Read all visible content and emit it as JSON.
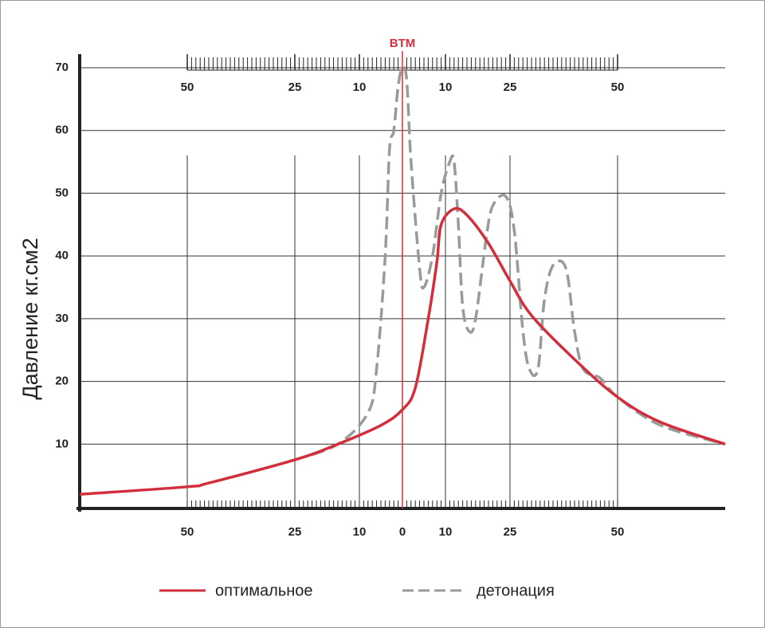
{
  "chart_data": {
    "type": "line",
    "ylabel": "Давление кг.см2",
    "annotation": {
      "x": 0,
      "text": "BTM",
      "color": "#d22f3c"
    },
    "xlim": [
      -75,
      75
    ],
    "ylim": [
      0,
      70
    ],
    "xticks": [
      {
        "value": -50,
        "label": "50"
      },
      {
        "value": -25,
        "label": "25"
      },
      {
        "value": -10,
        "label": "10"
      },
      0,
      10,
      25,
      50
    ],
    "x2ticks": [
      {
        "value": -50,
        "label": "50"
      },
      {
        "value": -25,
        "label": "25"
      },
      {
        "value": -10,
        "label": "10"
      },
      10,
      25,
      50
    ],
    "yticks": [
      10,
      20,
      30,
      40,
      50,
      60,
      70
    ],
    "grid": true,
    "legend": "bottom",
    "series": [
      {
        "name": "оптимальное",
        "color": "#d22f3c",
        "dash": false,
        "x": [
          -75,
          -50,
          -45,
          -25,
          -15,
          -5,
          0,
          3,
          6,
          8,
          9,
          12,
          15,
          20,
          25,
          30,
          40,
          50,
          60,
          75
        ],
        "values": [
          2,
          3.2,
          3.8,
          7.5,
          10,
          13,
          15.5,
          19,
          30,
          39,
          45,
          47.5,
          46.5,
          42,
          36,
          30.5,
          23.5,
          17.5,
          13.5,
          10
        ]
      },
      {
        "name": "детонация",
        "color": "#9a9a9a",
        "dash": true,
        "x": [
          -25,
          -15,
          -8,
          -6,
          -4,
          -3,
          -2,
          -1,
          0,
          1,
          2,
          4,
          5,
          7,
          9,
          11,
          12,
          13,
          14,
          15.5,
          17,
          19.5,
          21,
          24,
          26,
          28,
          29.5,
          31.5,
          33,
          35,
          38,
          40,
          42,
          46,
          50,
          60,
          75
        ],
        "values": [
          7.5,
          10,
          15,
          22,
          40,
          57,
          60,
          67,
          70,
          68,
          55,
          38,
          35,
          40,
          50,
          55,
          55,
          45,
          32,
          28,
          30,
          43,
          48,
          49.5,
          44,
          28,
          22,
          22,
          33,
          38.5,
          38,
          28,
          22,
          20.5,
          17.5,
          13,
          10
        ]
      }
    ]
  }
}
